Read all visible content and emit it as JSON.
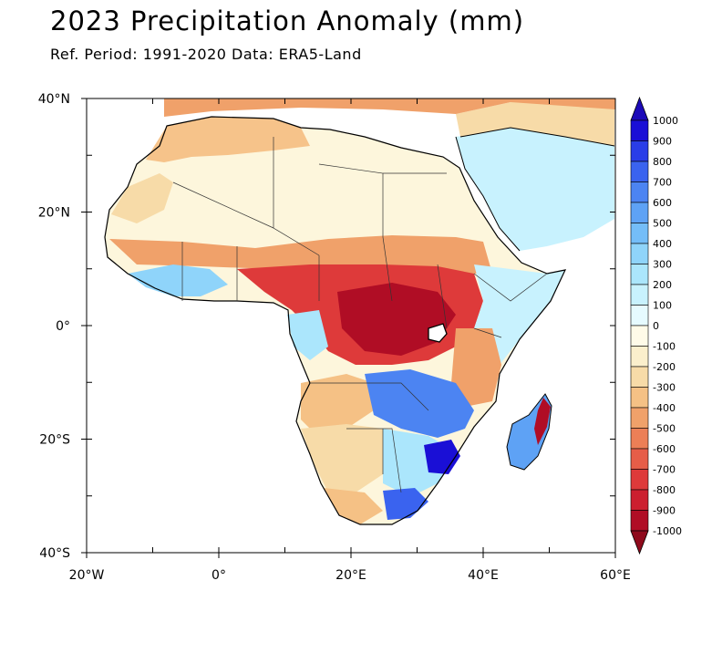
{
  "title": "2023 Precipitation Anomaly (mm)",
  "subtitle": "Ref. Period: 1991-2020 Data: ERA5-Land",
  "map": {
    "lon_range": [
      -20,
      60
    ],
    "lat_range": [
      -40,
      40
    ],
    "x_ticks": [
      {
        "value": -20,
        "label": "20°W"
      },
      {
        "value": 0,
        "label": "0°"
      },
      {
        "value": 20,
        "label": "20°E"
      },
      {
        "value": 40,
        "label": "40°E"
      },
      {
        "value": 60,
        "label": "60°E"
      }
    ],
    "y_ticks": [
      {
        "value": 40,
        "label": "40°N"
      },
      {
        "value": 20,
        "label": "20°N"
      },
      {
        "value": 0,
        "label": "0°"
      },
      {
        "value": -20,
        "label": "20°S"
      },
      {
        "value": -40,
        "label": "40°S"
      }
    ]
  },
  "colorbar": {
    "labels": [
      "1000",
      "900",
      "800",
      "700",
      "600",
      "500",
      "400",
      "300",
      "200",
      "100",
      "0",
      "-100",
      "-200",
      "-300",
      "-400",
      "-500",
      "-600",
      "-700",
      "-800",
      "-900",
      "-1000"
    ],
    "colors": [
      "#1a0fd6",
      "#2a3de8",
      "#3a63ef",
      "#4c84f2",
      "#5ea2f5",
      "#74bdf8",
      "#8fd4fa",
      "#abe6fc",
      "#c8f2fe",
      "#e6fbff",
      "#fffbe8",
      "#fbefcc",
      "#f7dba8",
      "#f5c185",
      "#f0a16a",
      "#ec7f56",
      "#e65d48",
      "#de3a3a",
      "#cc1f2f",
      "#b00d25"
    ],
    "top_arrow_color": "#1c0ab8",
    "bottom_arrow_color": "#8f0a1c"
  },
  "regions": [
    {
      "name": "north-africa-desert",
      "color": "#fdf6dc"
    },
    {
      "name": "maghreb-coast",
      "color": "#f6c38a"
    },
    {
      "name": "sahel-central-deficit",
      "color": "#de3a3a"
    },
    {
      "name": "congo-deficit",
      "color": "#cc1f2f"
    },
    {
      "name": "southern-africa-surplus",
      "color": "#3a63ef"
    },
    {
      "name": "mozambique-surplus",
      "color": "#1a0fd6"
    },
    {
      "name": "madagascar-east-deficit",
      "color": "#b00d25"
    },
    {
      "name": "arabian-peninsula",
      "color": "#c8f2fe"
    },
    {
      "name": "horn-of-africa",
      "color": "#abe6fc"
    }
  ]
}
